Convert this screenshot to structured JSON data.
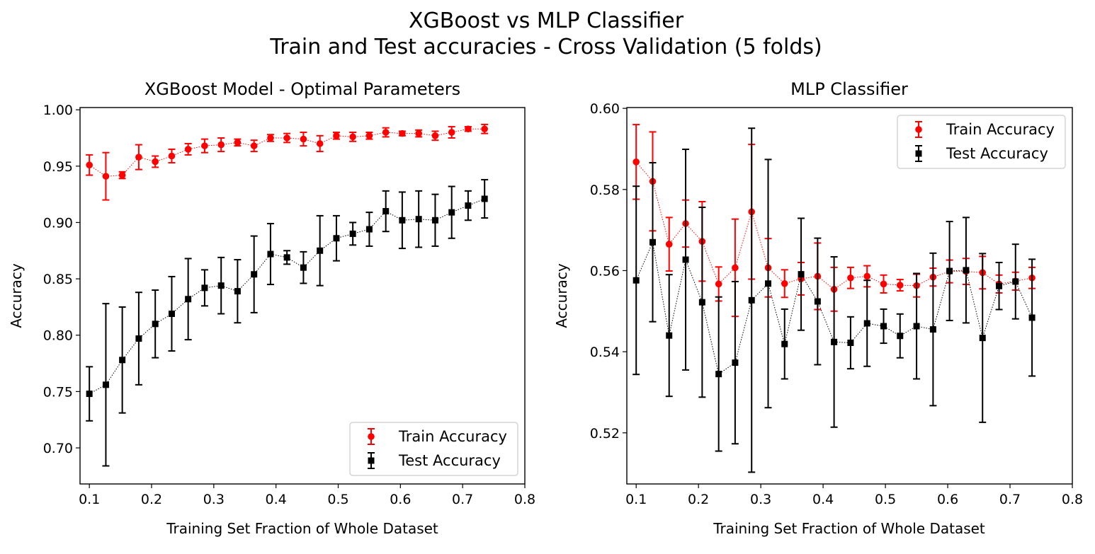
{
  "figure": {
    "title_line1": "XGBoost vs MLP Classifier",
    "title_line2": "Train and Test accuracies - Cross Validation (5 folds)"
  },
  "chart_data": [
    {
      "type": "line",
      "title": "XGBoost Model - Optimal Parameters",
      "xlabel": "Training Set Fraction of Whole Dataset",
      "ylabel": "Accuracy",
      "xlim": [
        0.085,
        0.8
      ],
      "ylim": [
        0.668,
        1.002
      ],
      "xticks": [
        0.1,
        0.2,
        0.3,
        0.4,
        0.5,
        0.6,
        0.7,
        0.8
      ],
      "xtick_labels": [
        "0.1",
        "0.2",
        "0.3",
        "0.4",
        "0.5",
        "0.6",
        "0.7",
        "0.8"
      ],
      "yticks": [
        0.7,
        0.75,
        0.8,
        0.85,
        0.9,
        0.95,
        1.0
      ],
      "ytick_labels": [
        "0.70",
        "0.75",
        "0.80",
        "0.85",
        "0.90",
        "0.95",
        "1.00"
      ],
      "grid": false,
      "legend_position": "lower-right",
      "x": [
        0.1,
        0.1265,
        0.1529,
        0.1794,
        0.2059,
        0.2324,
        0.2588,
        0.2853,
        0.3118,
        0.3382,
        0.3647,
        0.3912,
        0.4176,
        0.4441,
        0.4706,
        0.4971,
        0.5235,
        0.55,
        0.5765,
        0.6029,
        0.6294,
        0.6559,
        0.6824,
        0.7088,
        0.7353
      ],
      "series": [
        {
          "name": "Train Accuracy",
          "color": "#ff0000",
          "marker": "circle",
          "values": [
            0.951,
            0.941,
            0.942,
            0.958,
            0.954,
            0.959,
            0.965,
            0.968,
            0.969,
            0.971,
            0.968,
            0.975,
            0.975,
            0.974,
            0.97,
            0.977,
            0.976,
            0.977,
            0.98,
            0.979,
            0.979,
            0.977,
            0.98,
            0.983,
            0.983
          ],
          "errors": [
            0.009,
            0.021,
            0.003,
            0.011,
            0.005,
            0.006,
            0.005,
            0.006,
            0.006,
            0.003,
            0.005,
            0.003,
            0.004,
            0.006,
            0.007,
            0.003,
            0.004,
            0.003,
            0.004,
            0.002,
            0.003,
            0.004,
            0.005,
            0.002,
            0.004
          ]
        },
        {
          "name": "Test Accuracy",
          "color": "#000000",
          "marker": "square",
          "values": [
            0.748,
            0.756,
            0.778,
            0.797,
            0.81,
            0.819,
            0.832,
            0.842,
            0.844,
            0.839,
            0.854,
            0.872,
            0.869,
            0.86,
            0.875,
            0.886,
            0.89,
            0.894,
            0.91,
            0.902,
            0.903,
            0.902,
            0.909,
            0.915,
            0.921
          ],
          "errors": [
            0.024,
            0.072,
            0.047,
            0.041,
            0.03,
            0.033,
            0.036,
            0.016,
            0.025,
            0.028,
            0.034,
            0.027,
            0.006,
            0.014,
            0.031,
            0.02,
            0.01,
            0.015,
            0.018,
            0.025,
            0.025,
            0.023,
            0.023,
            0.013,
            0.017
          ]
        }
      ]
    },
    {
      "type": "line",
      "title": "MLP Classifier",
      "xlabel": "Training Set Fraction of Whole Dataset",
      "ylabel": "Accuracy",
      "xlim": [
        0.085,
        0.8
      ],
      "ylim": [
        0.5074,
        0.6002
      ],
      "xticks": [
        0.1,
        0.2,
        0.3,
        0.4,
        0.5,
        0.6,
        0.7,
        0.8
      ],
      "xtick_labels": [
        "0.1",
        "0.2",
        "0.3",
        "0.4",
        "0.5",
        "0.6",
        "0.7",
        "0.8"
      ],
      "yticks": [
        0.52,
        0.54,
        0.56,
        0.58,
        0.6
      ],
      "ytick_labels": [
        "0.52",
        "0.54",
        "0.56",
        "0.58",
        "0.60"
      ],
      "grid": false,
      "legend_position": "upper-right",
      "x": [
        0.1,
        0.1265,
        0.1529,
        0.1794,
        0.2059,
        0.2324,
        0.2588,
        0.2853,
        0.3118,
        0.3382,
        0.3647,
        0.3912,
        0.4176,
        0.4441,
        0.4706,
        0.4971,
        0.5235,
        0.55,
        0.5765,
        0.6029,
        0.6294,
        0.6559,
        0.6824,
        0.7088,
        0.7353
      ],
      "series": [
        {
          "name": "Train Accuracy",
          "color": "#ff0000",
          "marker": "circle",
          "values": [
            0.5868,
            0.582,
            0.5665,
            0.5716,
            0.5672,
            0.5567,
            0.5607,
            0.5745,
            0.5607,
            0.5568,
            0.558,
            0.5586,
            0.5554,
            0.5582,
            0.5586,
            0.5567,
            0.5564,
            0.5563,
            0.5584,
            0.5598,
            0.5598,
            0.5595,
            0.5567,
            0.5574,
            0.5582
          ],
          "errors": [
            0.0092,
            0.0122,
            0.0066,
            0.0058,
            0.0098,
            0.0042,
            0.012,
            0.0166,
            0.0072,
            0.0034,
            0.004,
            0.0082,
            0.0054,
            0.0026,
            0.0026,
            0.0022,
            0.0014,
            0.0028,
            0.0022,
            0.0028,
            0.0032,
            0.004,
            0.0022,
            0.0022,
            0.0026
          ]
        },
        {
          "name": "Test Accuracy",
          "color": "#000000",
          "marker": "square",
          "values": [
            0.5576,
            0.567,
            0.544,
            0.5627,
            0.5522,
            0.5345,
            0.5373,
            0.5527,
            0.5568,
            0.5419,
            0.5591,
            0.5524,
            0.5424,
            0.5422,
            0.547,
            0.5463,
            0.5439,
            0.5463,
            0.5455,
            0.5599,
            0.5601,
            0.5434,
            0.5562,
            0.5573,
            0.5484
          ],
          "errors": [
            0.0232,
            0.0196,
            0.015,
            0.0272,
            0.0234,
            0.019,
            0.02,
            0.0424,
            0.0306,
            0.0086,
            0.0138,
            0.0156,
            0.021,
            0.0064,
            0.0106,
            0.0042,
            0.0054,
            0.013,
            0.0188,
            0.0122,
            0.013,
            0.0208,
            0.0058,
            0.0092,
            0.0144
          ]
        }
      ]
    }
  ]
}
